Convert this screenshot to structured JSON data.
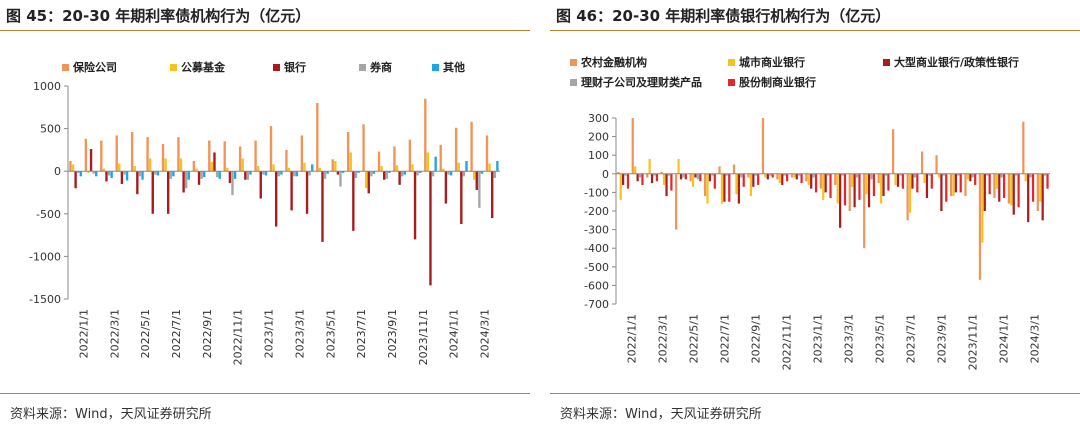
{
  "panels": [
    {
      "title": "图 45：20-30 年期利率债机构行为（亿元）",
      "source": "资料来源：Wind，天风证券研究所"
    },
    {
      "title": "图 46：20-30 年期利率债银行机构行为（亿元）",
      "source": "资料来源：Wind，天风证券研究所"
    }
  ],
  "chart_data": [
    {
      "type": "bar",
      "ylim": [
        -1500,
        1000
      ],
      "yticks": [
        -1500,
        -1000,
        -500,
        0,
        500,
        1000
      ],
      "grid": false,
      "legend_position": "top",
      "x_tick_labels": [
        "2022/1/1",
        "2022/3/1",
        "2022/5/1",
        "2022/7/1",
        "2022/9/1",
        "2022/11/1",
        "2023/1/1",
        "2023/3/1",
        "2023/5/1",
        "2023/7/1",
        "2023/9/1",
        "2023/11/1",
        "2024/1/1",
        "2024/3/1"
      ],
      "series": [
        {
          "name": "保险公司",
          "color": "#f0955a",
          "values": [
            120,
            380,
            360,
            420,
            460,
            400,
            320,
            400,
            120,
            360,
            350,
            290,
            360,
            530,
            250,
            420,
            800,
            140,
            460,
            550,
            230,
            290,
            370,
            850,
            310,
            510,
            580,
            420
          ]
        },
        {
          "name": "公募基金",
          "color": "#f7c21c",
          "values": [
            80,
            -20,
            30,
            90,
            60,
            150,
            150,
            150,
            30,
            110,
            40,
            150,
            60,
            80,
            40,
            100,
            40,
            120,
            220,
            -200,
            60,
            70,
            80,
            220,
            30,
            100,
            -100,
            90
          ]
        },
        {
          "name": "银行",
          "color": "#a81c1e",
          "values": [
            -200,
            260,
            -120,
            -150,
            -270,
            -500,
            -500,
            -250,
            -160,
            220,
            -140,
            -100,
            -320,
            -650,
            -460,
            -500,
            -830,
            -40,
            -700,
            -260,
            -100,
            -160,
            -800,
            -1340,
            -380,
            -620,
            -220,
            -550
          ]
        },
        {
          "name": "券商",
          "color": "#a6a6a6",
          "values": [
            -20,
            -30,
            -50,
            -40,
            -60,
            -40,
            -90,
            -200,
            -90,
            -70,
            -280,
            -100,
            -40,
            -60,
            -60,
            -50,
            -90,
            -180,
            -80,
            -60,
            -90,
            -60,
            -50,
            -60,
            -40,
            -60,
            -430,
            -80
          ]
        },
        {
          "name": "其他",
          "color": "#1fa8df",
          "values": [
            -60,
            -60,
            -80,
            -110,
            -100,
            -50,
            -60,
            -100,
            -70,
            -90,
            -90,
            -40,
            -50,
            -40,
            -60,
            80,
            -30,
            -20,
            -20,
            -30,
            -20,
            -40,
            -20,
            170,
            -50,
            120,
            -30,
            120
          ]
        }
      ]
    },
    {
      "type": "bar",
      "ylim": [
        -700,
        300
      ],
      "yticks": [
        -700,
        -600,
        -500,
        -400,
        -300,
        -200,
        -100,
        0,
        100,
        200,
        300
      ],
      "grid": false,
      "legend_position": "top",
      "x_tick_labels": [
        "2022/1/1",
        "2022/3/1",
        "2022/5/1",
        "2022/7/1",
        "2022/9/1",
        "2022/11/1",
        "2023/1/1",
        "2023/3/1",
        "2023/5/1",
        "2023/7/1",
        "2023/9/1",
        "2023/11/1",
        "2024/1/1",
        "2024/3/1"
      ],
      "series": [
        {
          "name": "农村金融机构",
          "color": "#f0955a",
          "values": [
            10,
            300,
            -20,
            10,
            -300,
            -40,
            -120,
            40,
            50,
            -20,
            300,
            -30,
            -20,
            -40,
            -80,
            -60,
            -200,
            -400,
            -50,
            240,
            -250,
            120,
            100,
            -120,
            -120,
            -570,
            -130,
            -160,
            280,
            -200
          ]
        },
        {
          "name": "城市商业银行",
          "color": "#f7c21c",
          "values": [
            -140,
            40,
            80,
            -60,
            80,
            -70,
            -160,
            -160,
            -110,
            -120,
            -20,
            -50,
            -20,
            -60,
            -140,
            -160,
            -70,
            -110,
            -160,
            -60,
            -210,
            -50,
            -20,
            -120,
            -30,
            -370,
            -80,
            -170,
            -40,
            -150
          ]
        },
        {
          "name": "大型商业银行/政策性银行",
          "color": "#a81c1e",
          "values": [
            -60,
            -40,
            -50,
            -120,
            -30,
            -20,
            -40,
            -150,
            -160,
            -70,
            -30,
            -60,
            -30,
            -80,
            -100,
            -290,
            -180,
            -180,
            -120,
            -70,
            -80,
            -130,
            -200,
            -100,
            -40,
            -200,
            -150,
            -220,
            -260,
            -250
          ]
        },
        {
          "name": "理财子公司及理财类产品",
          "color": "#a6a6a6",
          "values": [
            -10,
            -20,
            -10,
            -10,
            -20,
            -30,
            -10,
            -10,
            -20,
            -10,
            -10,
            -10,
            -10,
            -20,
            -10,
            -10,
            -20,
            -30,
            -10,
            -10,
            -20,
            -10,
            -10,
            -10,
            -20,
            -10,
            -20,
            -10,
            -20,
            -10
          ]
        },
        {
          "name": "股份制商业银行",
          "color": "#e6262c",
          "values": [
            -80,
            -60,
            -40,
            -90,
            -30,
            -40,
            -80,
            -150,
            -70,
            -60,
            -20,
            -40,
            -50,
            -100,
            -130,
            -170,
            -140,
            -120,
            -90,
            -80,
            -100,
            -80,
            -150,
            -100,
            -60,
            -110,
            -130,
            -180,
            -150,
            -80
          ]
        }
      ]
    }
  ]
}
